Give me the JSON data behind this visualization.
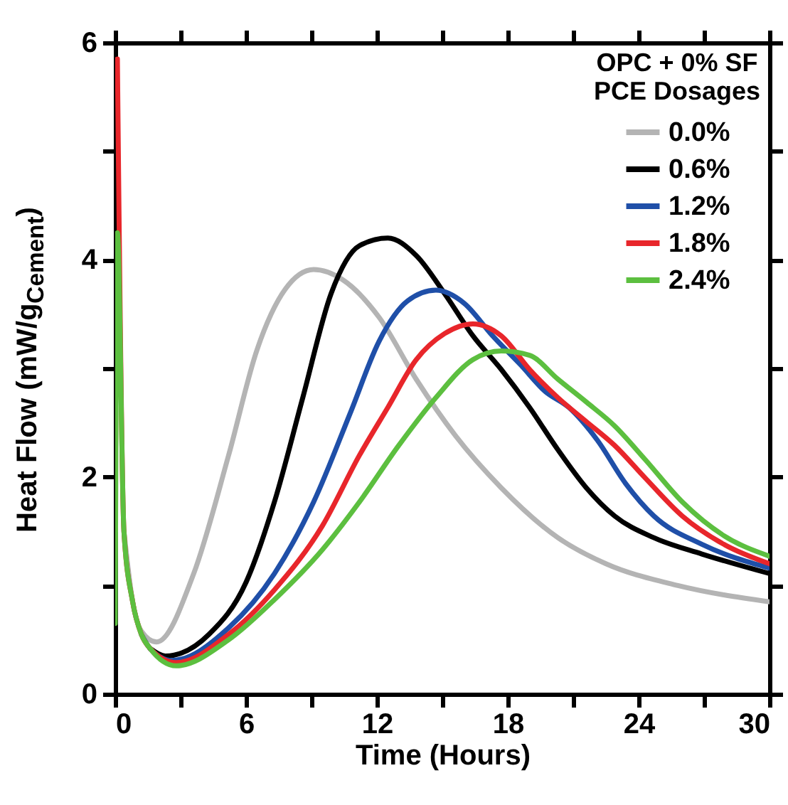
{
  "chart_data": {
    "type": "line",
    "xlabel": "Time (Hours)",
    "ylabel": "Heat Flow (mW/g$_{Cement}$)",
    "legend_title": "OPC + 0% SF\nPCE Dosages",
    "legend": "top right",
    "xlim": [
      0,
      30
    ],
    "xticks": [
      0,
      {
        "value": 3,
        "label": null
      },
      6,
      {
        "value": 9,
        "label": null
      },
      12,
      {
        "value": 15,
        "label": null
      },
      18,
      {
        "value": 21,
        "label": null
      },
      24,
      {
        "value": 27,
        "label": null
      },
      30
    ],
    "ylim": [
      0,
      6
    ],
    "yticks": [
      0,
      {
        "value": 1,
        "label": null
      },
      2,
      {
        "value": 3,
        "label": null
      },
      4,
      {
        "value": 5,
        "label": null
      },
      6
    ],
    "series": [
      {
        "name": "0.0%",
        "color": "#b4b4b4",
        "x": [
          0.4,
          0.8,
          1.2,
          1.9,
          3.6,
          5.2,
          6.5,
          7.8,
          9.1,
          10.4,
          12.1,
          13.8,
          15.6,
          17.7,
          20.3,
          22.5,
          25.8,
          30
        ],
        "values": [
          1.5,
          0.85,
          0.58,
          0.48,
          1.11,
          2.2,
          3.17,
          3.73,
          3.91,
          3.82,
          3.47,
          2.9,
          2.38,
          1.9,
          1.44,
          1.2,
          1.0,
          0.85
        ]
      },
      {
        "name": "0.6%",
        "color": "#000000",
        "x": [
          1.6,
          2.3,
          4.3,
          6.0,
          7.3,
          8.6,
          9.9,
          11.2,
          12.5,
          13.8,
          15.1,
          16.4,
          17.7,
          19.0,
          20.3,
          21.6,
          22.9,
          24.7,
          26.9,
          30
        ],
        "values": [
          0.42,
          0.35,
          0.55,
          1.03,
          1.77,
          2.73,
          3.69,
          4.13,
          4.2,
          4.04,
          3.69,
          3.3,
          2.99,
          2.64,
          2.25,
          1.9,
          1.64,
          1.44,
          1.29,
          1.11
        ]
      },
      {
        "name": "1.2%",
        "color": "#1f4fa8",
        "x": [
          1.2,
          1.6,
          2.6,
          5.2,
          7.3,
          9.1,
          10.8,
          12.1,
          13.4,
          14.7,
          16.0,
          17.3,
          18.6,
          19.7,
          20.8,
          22.1,
          23.4,
          24.7,
          26.9,
          30
        ],
        "values": [
          0.55,
          0.42,
          0.31,
          0.61,
          1.11,
          1.77,
          2.6,
          3.25,
          3.62,
          3.72,
          3.6,
          3.3,
          3.03,
          2.79,
          2.64,
          2.34,
          1.94,
          1.64,
          1.38,
          1.16
        ]
      },
      {
        "name": "1.8%",
        "color": "#e8262b",
        "x": [
          0.1,
          0.4,
          0.8,
          1.2,
          1.6,
          2.8,
          5.2,
          7.3,
          9.5,
          11.2,
          12.5,
          13.8,
          15.1,
          16.4,
          17.7,
          19.0,
          20.3,
          21.6,
          22.9,
          24.3,
          26.0,
          27.9,
          30
        ],
        "values": [
          5.85,
          1.5,
          0.85,
          0.55,
          0.42,
          0.29,
          0.55,
          0.96,
          1.55,
          2.2,
          2.64,
          3.08,
          3.32,
          3.41,
          3.3,
          2.99,
          2.73,
          2.51,
          2.29,
          1.99,
          1.64,
          1.38,
          1.2
        ]
      },
      {
        "name": "2.4%",
        "color": "#5cbf3f",
        "x": [
          0,
          0.1,
          0.4,
          0.8,
          1.2,
          1.6,
          2.8,
          5.2,
          7.3,
          9.5,
          11.2,
          13.0,
          14.7,
          16.4,
          17.7,
          19.0,
          20.3,
          21.6,
          22.9,
          24.3,
          26.0,
          27.9,
          30
        ],
        "values": [
          0.65,
          4.25,
          1.5,
          0.85,
          0.55,
          0.42,
          0.26,
          0.5,
          0.87,
          1.33,
          1.77,
          2.29,
          2.73,
          3.08,
          3.16,
          3.12,
          2.9,
          2.69,
          2.47,
          2.16,
          1.77,
          1.46,
          1.27
        ]
      }
    ]
  }
}
